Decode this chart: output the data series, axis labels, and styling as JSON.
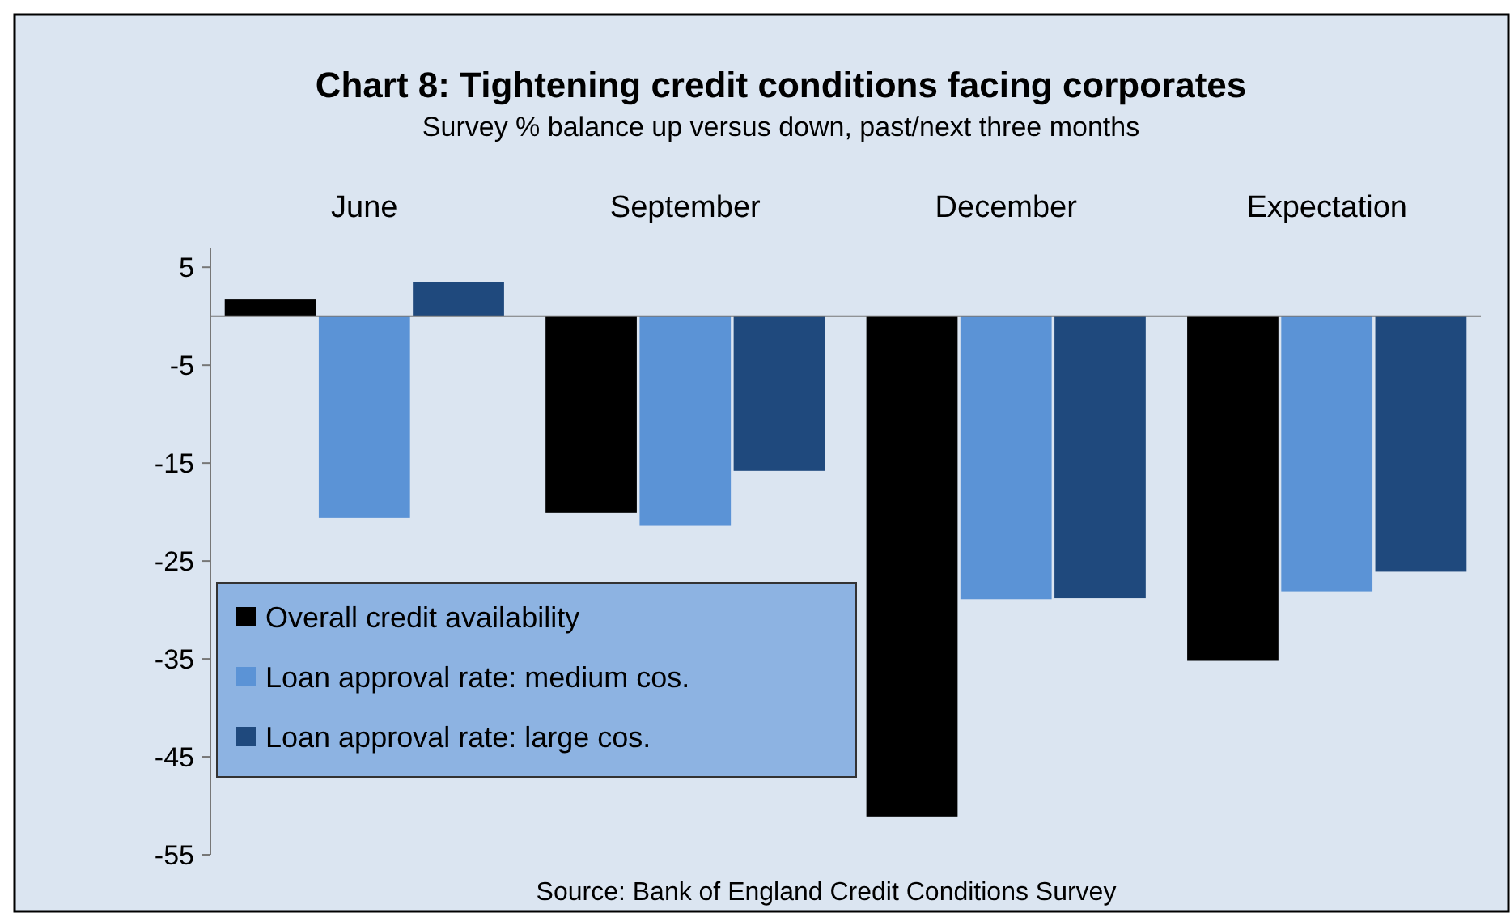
{
  "chart_data": {
    "type": "bar",
    "title": "Chart 8: Tightening credit conditions facing corporates",
    "subtitle": "Survey % balance up versus down, past/next three months",
    "categories": [
      "June",
      "September",
      "December",
      "Expectation"
    ],
    "series": [
      {
        "name": "Overall credit availability",
        "color": "#000000",
        "values": [
          1.7,
          -20.1,
          -51.1,
          -35.2
        ]
      },
      {
        "name": "Loan approval rate: medium cos.",
        "color": "#5b93d6",
        "values": [
          -20.6,
          -21.4,
          -28.9,
          -28.1
        ]
      },
      {
        "name": "Loan approval rate: large cos.",
        "color": "#1f497d",
        "values": [
          3.5,
          -15.8,
          -28.8,
          -26.1
        ]
      }
    ],
    "ylim": [
      -55,
      7
    ],
    "yticks": [
      5,
      -5,
      -15,
      -25,
      -35,
      -45,
      -55
    ],
    "grid": false,
    "legend": "bottom left",
    "annotations": [
      "Source: Bank of England Credit Conditions Survey"
    ]
  }
}
